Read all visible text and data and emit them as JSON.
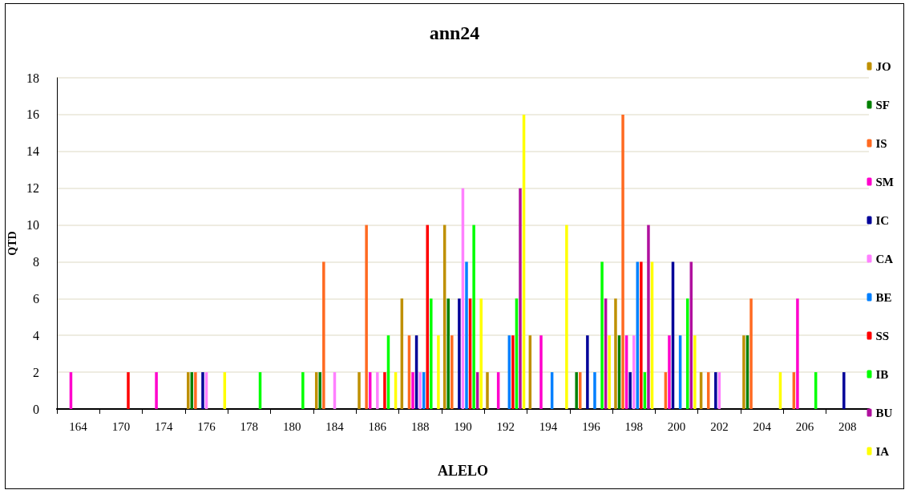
{
  "chart_data": {
    "type": "bar",
    "title": "ann24",
    "xlabel": "ALELO",
    "ylabel": "QTD",
    "categories": [
      "164",
      "170",
      "174",
      "176",
      "178",
      "180",
      "184",
      "186",
      "188",
      "190",
      "192",
      "194",
      "196",
      "198",
      "200",
      "202",
      "204",
      "206",
      "208"
    ],
    "series": [
      {
        "name": "JO",
        "color": "#bf9000",
        "values": [
          0,
          0,
          0,
          2,
          0,
          0,
          2,
          2,
          6,
          10,
          2,
          4,
          0,
          6,
          0,
          2,
          4,
          0,
          0
        ]
      },
      {
        "name": "SF",
        "color": "#008000",
        "values": [
          0,
          0,
          0,
          2,
          0,
          0,
          2,
          0,
          0,
          6,
          0,
          0,
          2,
          4,
          0,
          0,
          4,
          0,
          0
        ]
      },
      {
        "name": "IS",
        "color": "#ff6a21",
        "values": [
          0,
          0,
          0,
          2,
          0,
          0,
          8,
          10,
          4,
          4,
          0,
          0,
          2,
          16,
          2,
          2,
          6,
          2,
          0
        ]
      },
      {
        "name": "SM",
        "color": "#ff00cc",
        "values": [
          2,
          0,
          2,
          0,
          0,
          0,
          0,
          2,
          2,
          0,
          2,
          4,
          0,
          4,
          4,
          0,
          0,
          6,
          0
        ]
      },
      {
        "name": "IC",
        "color": "#000099",
        "values": [
          0,
          0,
          0,
          2,
          0,
          0,
          0,
          0,
          4,
          6,
          0,
          0,
          4,
          2,
          8,
          2,
          0,
          0,
          2
        ]
      },
      {
        "name": "CA",
        "color": "#ff80ff",
        "values": [
          0,
          0,
          0,
          2,
          0,
          0,
          2,
          2,
          2,
          12,
          0,
          0,
          0,
          4,
          0,
          2,
          0,
          0,
          0
        ]
      },
      {
        "name": "BE",
        "color": "#0080ff",
        "values": [
          0,
          0,
          0,
          0,
          0,
          0,
          0,
          0,
          2,
          8,
          4,
          2,
          2,
          8,
          4,
          0,
          0,
          0,
          0
        ]
      },
      {
        "name": "SS",
        "color": "#ff0000",
        "values": [
          0,
          2,
          0,
          0,
          0,
          0,
          0,
          2,
          10,
          6,
          4,
          0,
          0,
          8,
          0,
          0,
          0,
          0,
          0
        ]
      },
      {
        "name": "IB",
        "color": "#00ff00",
        "values": [
          0,
          0,
          0,
          0,
          2,
          2,
          0,
          4,
          6,
          10,
          6,
          0,
          8,
          2,
          6,
          0,
          0,
          2,
          0
        ]
      },
      {
        "name": "BU",
        "color": "#b0109e",
        "values": [
          0,
          0,
          0,
          0,
          0,
          0,
          0,
          0,
          0,
          2,
          12,
          0,
          6,
          10,
          8,
          0,
          0,
          0,
          0
        ]
      },
      {
        "name": "IA",
        "color": "#ffff00",
        "values": [
          0,
          0,
          0,
          2,
          0,
          0,
          0,
          2,
          4,
          6,
          16,
          10,
          4,
          8,
          4,
          0,
          2,
          0,
          0
        ]
      }
    ],
    "ylim": [
      0,
      18
    ],
    "yticks": [
      0,
      2,
      4,
      6,
      8,
      10,
      12,
      14,
      16,
      18
    ],
    "grid": "y",
    "legend": "right"
  }
}
